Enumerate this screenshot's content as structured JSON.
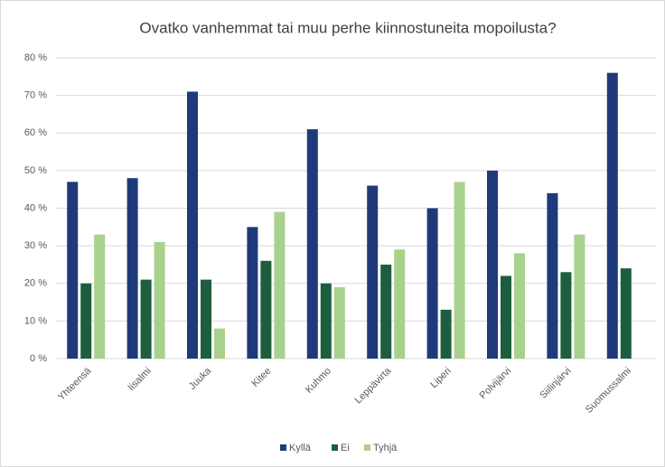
{
  "chart_data": {
    "type": "bar",
    "title": "Ovatko vanhemmat tai muu perhe kiinnostuneita mopoilusta?",
    "categories": [
      "Yhteensä",
      "Iisalmi",
      "Juuka",
      "Kitee",
      "Kuhmo",
      "Leppävirta",
      "Liperi",
      "Polvijärvi",
      "Siilinjärvi",
      "Suomussalmi"
    ],
    "series": [
      {
        "name": "Kyllä",
        "color": "#1f3a7a",
        "values": [
          47,
          48,
          71,
          35,
          61,
          46,
          40,
          50,
          44,
          76
        ]
      },
      {
        "name": "Ei",
        "color": "#1d5e3f",
        "values": [
          20,
          21,
          21,
          26,
          20,
          25,
          13,
          22,
          23,
          24
        ]
      },
      {
        "name": "Tyhjä",
        "color": "#a9d18e",
        "values": [
          33,
          31,
          8,
          39,
          19,
          29,
          47,
          28,
          33,
          0
        ]
      }
    ],
    "ylim": [
      0,
      80
    ],
    "yticks": [
      {
        "value": 0,
        "label": "0 %"
      },
      {
        "value": 10,
        "label": "10 %"
      },
      {
        "value": 20,
        "label": "20 %"
      },
      {
        "value": 30,
        "label": "30 %"
      },
      {
        "value": 40,
        "label": "40 %"
      },
      {
        "value": 50,
        "label": "50 %"
      },
      {
        "value": 60,
        "label": "60 %"
      },
      {
        "value": 70,
        "label": "70 %"
      },
      {
        "value": 80,
        "label": "80 %"
      }
    ],
    "grid": true,
    "legend": "bottom"
  }
}
